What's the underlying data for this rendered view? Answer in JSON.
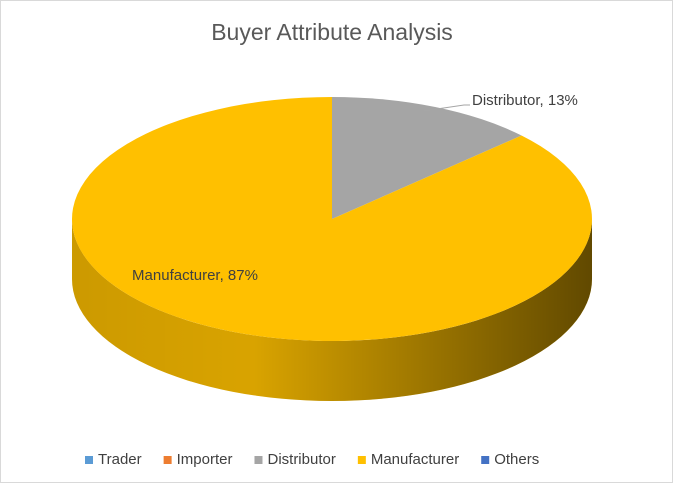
{
  "chart_data": {
    "type": "pie3d",
    "title": "Buyer Attribute Analysis",
    "categories": [
      "Trader",
      "Importer",
      "Distributor",
      "Manufacturer",
      "Others"
    ],
    "values": [
      0,
      0,
      13,
      87,
      0
    ],
    "value_labels": [
      null,
      null,
      "Distributor, 13%",
      "Manufacturer, 87%",
      null
    ],
    "colors": [
      "#5b9bd5",
      "#ed7d31",
      "#a5a5a5",
      "#ffc000",
      "#4472c4"
    ],
    "legend": "bottom"
  }
}
